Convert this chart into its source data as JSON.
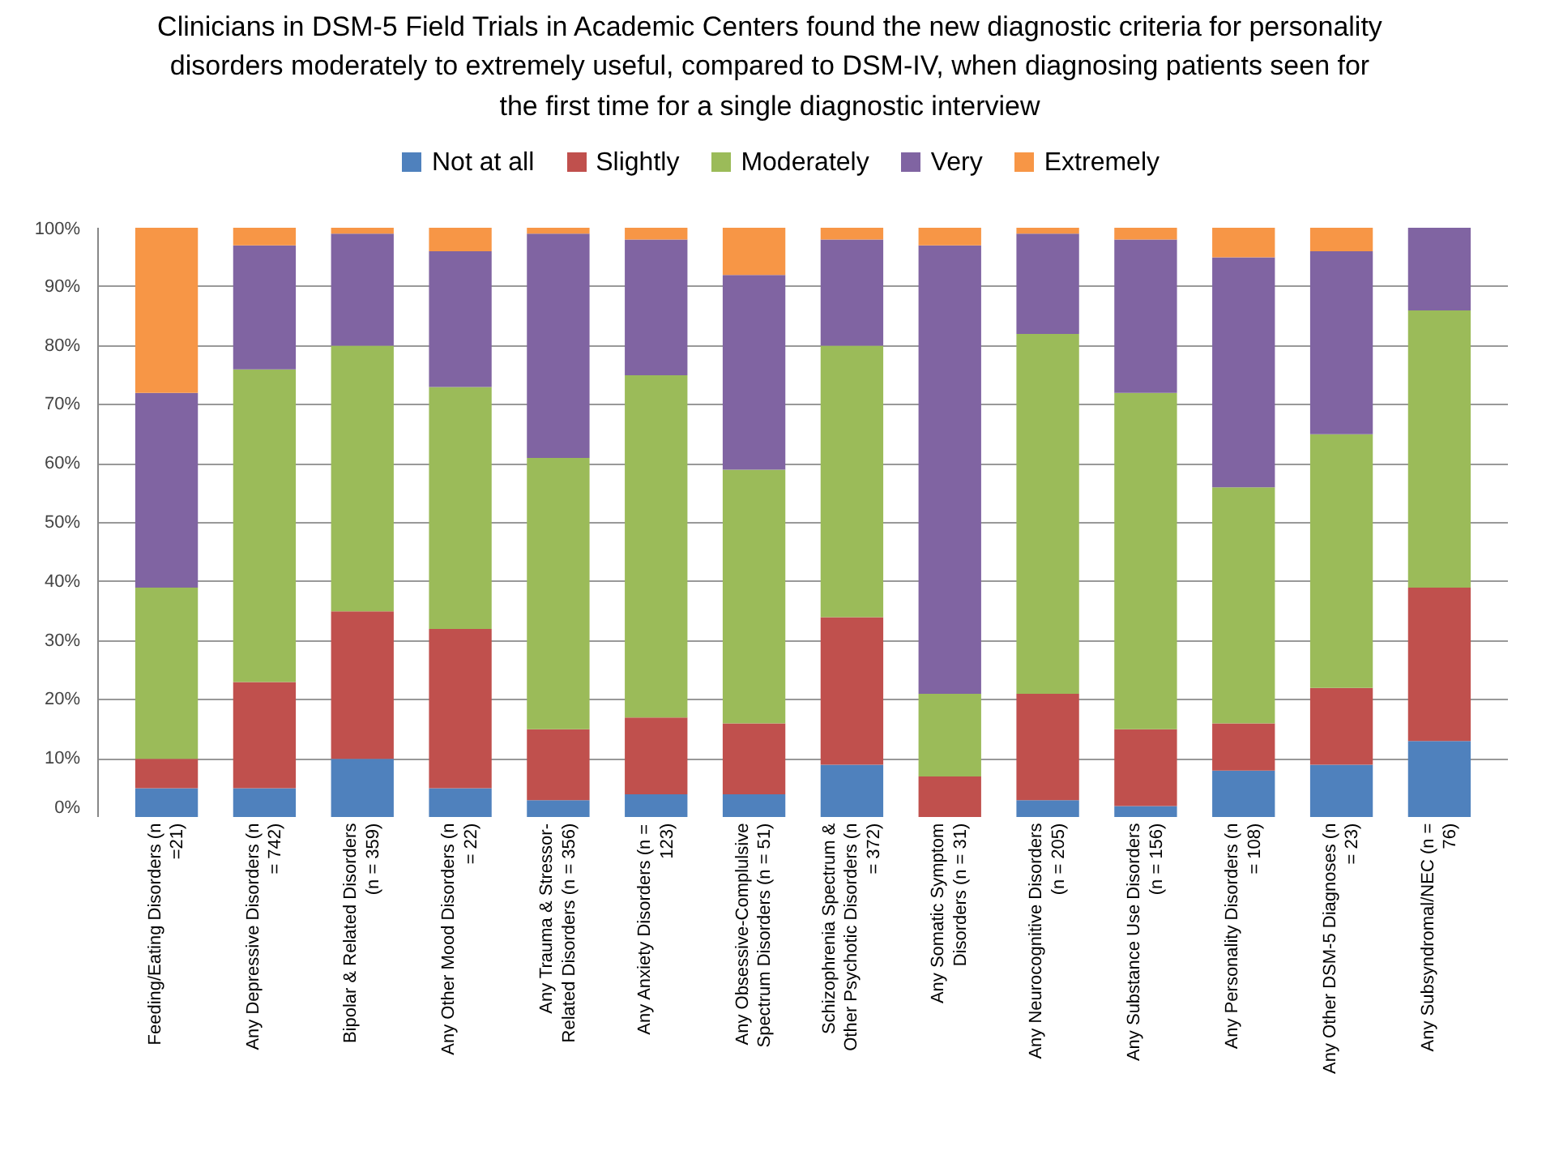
{
  "chart_data": {
    "type": "bar",
    "stacked": true,
    "title": "Clinicians in DSM-5 Field Trials in Academic Centers found the new diagnostic criteria for personality disorders moderately to extremely useful, compared to DSM-IV, when diagnosing patients seen for the first time for a single diagnostic interview",
    "categories": [
      "Feeding/Eating Disorders (n =21)",
      "Any Depressive Disorders (n = 742)",
      "Bipolar & Related Disorders (n = 359)",
      "Any Other Mood Disorders (n = 22)",
      "Any Trauma & Stressor-Related Disorders (n = 356)",
      "Any Anxiety Disorders (n = 123)",
      "Any Obsessive-Complulsive Spectrum Disorders (n = 51)",
      "Schizophrenia Spectrum & Other Psychotic Disorders (n = 372)",
      "Any Somatic Symptom Disorders (n = 31)",
      "Any Neurocognitive Disorders (n = 205)",
      "Any Substance Use Disorders (n = 156)",
      "Any Personality Disorders (n = 108)",
      "Any Other DSM-5 Diagnoses (n = 23)",
      "Any Subsyndromal/NEC (n = 76)"
    ],
    "series": [
      {
        "name": "Not at all",
        "color": "#4f81bd",
        "values": [
          5,
          5,
          10,
          5,
          3,
          4,
          4,
          9,
          0,
          3,
          2,
          8,
          9,
          13
        ]
      },
      {
        "name": "Slightly",
        "color": "#c0504d",
        "values": [
          5,
          18,
          25,
          27,
          12,
          13,
          12,
          25,
          7,
          18,
          13,
          8,
          13,
          26
        ]
      },
      {
        "name": "Moderately",
        "color": "#9bbb59",
        "values": [
          29,
          53,
          45,
          41,
          46,
          58,
          43,
          46,
          14,
          61,
          57,
          40,
          43,
          47
        ]
      },
      {
        "name": "Very",
        "color": "#8064a2",
        "values": [
          33,
          21,
          19,
          23,
          38,
          23,
          33,
          18,
          76,
          17,
          26,
          39,
          31,
          14
        ]
      },
      {
        "name": "Extremely",
        "color": "#f79646",
        "values": [
          28,
          3,
          1,
          4,
          1,
          2,
          8,
          2,
          3,
          1,
          2,
          5,
          4,
          null
        ]
      }
    ],
    "ylim": [
      0,
      100
    ],
    "yticks": [
      {
        "value": 0,
        "label": "0%"
      },
      {
        "value": 10,
        "label": "10%"
      },
      {
        "value": 20,
        "label": "20%"
      },
      {
        "value": 30,
        "label": "30%"
      },
      {
        "value": 40,
        "label": "40%"
      },
      {
        "value": 50,
        "label": "50%"
      },
      {
        "value": 60,
        "label": "60%"
      },
      {
        "value": 70,
        "label": "70%"
      },
      {
        "value": 80,
        "label": "80%"
      },
      {
        "value": 90,
        "label": "90%"
      },
      {
        "value": 100,
        "label": "100%"
      }
    ],
    "grid": "y",
    "legend": "top"
  }
}
